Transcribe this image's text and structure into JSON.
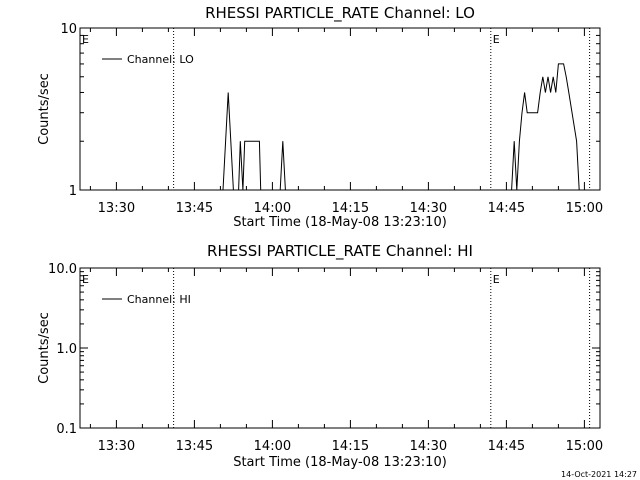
{
  "chart_data": [
    {
      "type": "line",
      "title": "RHESSI PARTICLE_RATE Channel: LO",
      "xlabel": "Start Time (18-May-08 13:23:10)",
      "ylabel": "Counts/sec",
      "yscale": "log",
      "ylim": [
        1,
        10
      ],
      "xlim": [
        "13:23",
        "15:03"
      ],
      "x_ticks": [
        "13:30",
        "13:45",
        "14:00",
        "14:15",
        "14:30",
        "14:45",
        "15:00"
      ],
      "y_ticks": [
        "1",
        "10"
      ],
      "grid": false,
      "legend_position": "top-left",
      "series": [
        {
          "name": "Channel: LO",
          "color": "#000000",
          "x": [
            "13:50:30",
            "13:51:00",
            "13:51:30",
            "13:52:00",
            "13:52:30",
            "13:53:30",
            "13:53:50",
            "13:54:20",
            "13:54:40",
            "13:55:00",
            "13:57:30",
            "13:57:45",
            "13:58:00",
            "14:01:30",
            "14:02:00",
            "14:02:30",
            "14:46:00",
            "14:46:30",
            "14:47:00",
            "14:47:30",
            "14:48:00",
            "14:48:30",
            "14:49:00",
            "14:49:30",
            "14:50:00",
            "14:51:00",
            "14:51:30",
            "14:52:00",
            "14:52:30",
            "14:53:00",
            "14:53:30",
            "14:54:00",
            "14:54:30",
            "14:55:00",
            "14:55:30",
            "14:56:00",
            "14:56:30",
            "14:57:00",
            "14:58:30",
            "14:59:00"
          ],
          "y": [
            1,
            2,
            4,
            2,
            1,
            1,
            2,
            1,
            2,
            2,
            2,
            1,
            1,
            1,
            2,
            1,
            1,
            2,
            1,
            2,
            3,
            4,
            3,
            3,
            3,
            3,
            4,
            5,
            4,
            5,
            4,
            5,
            4,
            6,
            6,
            6,
            5,
            4,
            2,
            1
          ]
        }
      ],
      "markers": [
        {
          "label": "E",
          "x": "13:23"
        },
        {
          "label": "E",
          "x": "14:42"
        }
      ],
      "vertical_lines": [
        "13:41",
        "14:42",
        "15:01"
      ]
    },
    {
      "type": "line",
      "title": "RHESSI PARTICLE_RATE Channel: HI",
      "xlabel": "Start Time (18-May-08 13:23:10)",
      "ylabel": "Counts/sec",
      "yscale": "log",
      "ylim": [
        0.1,
        10
      ],
      "xlim": [
        "13:23",
        "15:03"
      ],
      "x_ticks": [
        "13:30",
        "13:45",
        "14:00",
        "14:15",
        "14:30",
        "14:45",
        "15:00"
      ],
      "y_ticks": [
        "0.1",
        "1.0",
        "10.0"
      ],
      "grid": false,
      "legend_position": "top-left",
      "series": [
        {
          "name": "Channel: HI",
          "color": "#000000",
          "x": [],
          "y": []
        }
      ],
      "markers": [
        {
          "label": "E",
          "x": "13:23"
        },
        {
          "label": "E",
          "x": "14:42"
        }
      ],
      "vertical_lines": [
        "13:41",
        "14:42",
        "15:01"
      ]
    }
  ],
  "timestamp": "14-Oct-2021 14:27"
}
